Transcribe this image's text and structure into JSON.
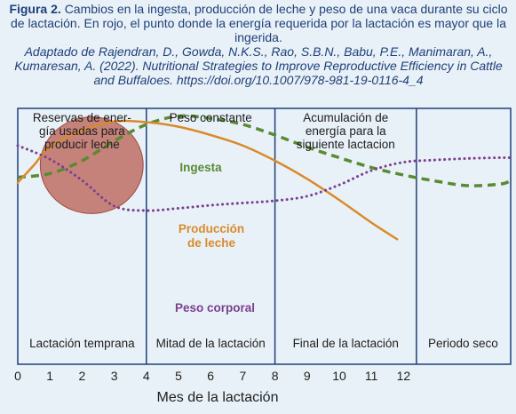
{
  "caption": {
    "figure_label": "Figura 2.",
    "figure_text": "Cambios en la ingesta, producción de leche y peso de una vaca durante su ciclo de lactación. En rojo, el punto donde la energía requerida por la lactación es mayor que la ingerida.",
    "citation": "Adaptado de Rajendran, D., Gowda, N.K.S., Rao, S.B.N., Babu, P.E., Manimaran, A., Kumaresan, A. (2022). Nutritional Strategies to Improve Reproductive Efficiency in Cattle and Buffaloes. https://doi.org/10.1007/978-981-19-0116-4_4"
  },
  "chart_data": {
    "type": "line",
    "xlabel": "Mes de la lactación",
    "x_ticks": [
      "0",
      "1",
      "2",
      "3",
      "4",
      "5",
      "6",
      "7",
      "8",
      "9",
      "10",
      "11",
      "12"
    ],
    "xlim": [
      0,
      15.3
    ],
    "phases_top": [
      {
        "lines": [
          "Reservas de ener-",
          "gía usadas para",
          "producir leche"
        ]
      },
      {
        "lines": [
          "Peso constante"
        ]
      },
      {
        "lines": [
          "Acumulación de",
          "energía para la",
          "siguiente lactacion"
        ]
      },
      {
        "lines": [
          ""
        ]
      }
    ],
    "phases_bottom": [
      "Lactación temprana",
      "Mitad de la lactación",
      "Final de la lactación",
      "Periodo seco"
    ],
    "phase_boundaries": [
      4.0,
      8.0,
      12.4
    ],
    "series": [
      {
        "name": "Ingesta",
        "color": "#5a8a32",
        "style": "dashed",
        "points": [
          [
            0,
            1.2
          ],
          [
            1,
            1.45
          ],
          [
            2,
            2.3
          ],
          [
            3,
            3.6
          ],
          [
            4,
            4.7
          ],
          [
            5,
            5.25
          ],
          [
            6,
            5.1
          ],
          [
            7,
            4.7
          ],
          [
            8,
            4.0
          ],
          [
            9,
            3.2
          ],
          [
            10,
            2.5
          ],
          [
            11,
            1.85
          ],
          [
            12,
            1.35
          ],
          [
            13,
            0.95
          ],
          [
            14,
            0.65
          ],
          [
            15,
            0.75
          ],
          [
            15.3,
            0.95
          ]
        ]
      },
      {
        "name": "Producción de leche",
        "color": "#d98a2b",
        "style": "solid",
        "points": [
          [
            0,
            0.85
          ],
          [
            0.5,
            2.0
          ],
          [
            1,
            3.2
          ],
          [
            2,
            4.3
          ],
          [
            3,
            4.9
          ],
          [
            4,
            4.85
          ],
          [
            5,
            4.55
          ],
          [
            6,
            4.0
          ],
          [
            7,
            3.3
          ],
          [
            8,
            2.3
          ],
          [
            9,
            1.1
          ],
          [
            10,
            -0.3
          ],
          [
            11,
            -1.8
          ],
          [
            11.8,
            -2.9
          ]
        ]
      },
      {
        "name": "Peso corporal",
        "color": "#7b3f8f",
        "style": "dotted",
        "points": [
          [
            0,
            3.3
          ],
          [
            1,
            2.4
          ],
          [
            2,
            1.0
          ],
          [
            3,
            -0.7
          ],
          [
            4,
            -1.0
          ],
          [
            5,
            -0.85
          ],
          [
            6,
            -0.65
          ],
          [
            7,
            -0.5
          ],
          [
            8,
            -0.35
          ],
          [
            9,
            -0.05
          ],
          [
            10,
            0.7
          ],
          [
            11,
            1.65
          ],
          [
            12,
            2.2
          ],
          [
            13,
            2.35
          ],
          [
            14,
            2.45
          ],
          [
            15,
            2.5
          ],
          [
            15.3,
            2.5
          ]
        ]
      }
    ],
    "series_labels": [
      {
        "series": "Ingesta",
        "lines": [
          "Ingesta"
        ]
      },
      {
        "series": "Producción de leche",
        "lines": [
          "Producción",
          "de leche"
        ]
      },
      {
        "series": "Peso corporal",
        "lines": [
          "Peso corporal"
        ]
      }
    ],
    "highlight": {
      "shape": "ellipse",
      "color": "#b5574a",
      "center_x": 2.3,
      "center_y": 2.0,
      "radius_x": 1.6,
      "radius_y": 3.2
    }
  }
}
